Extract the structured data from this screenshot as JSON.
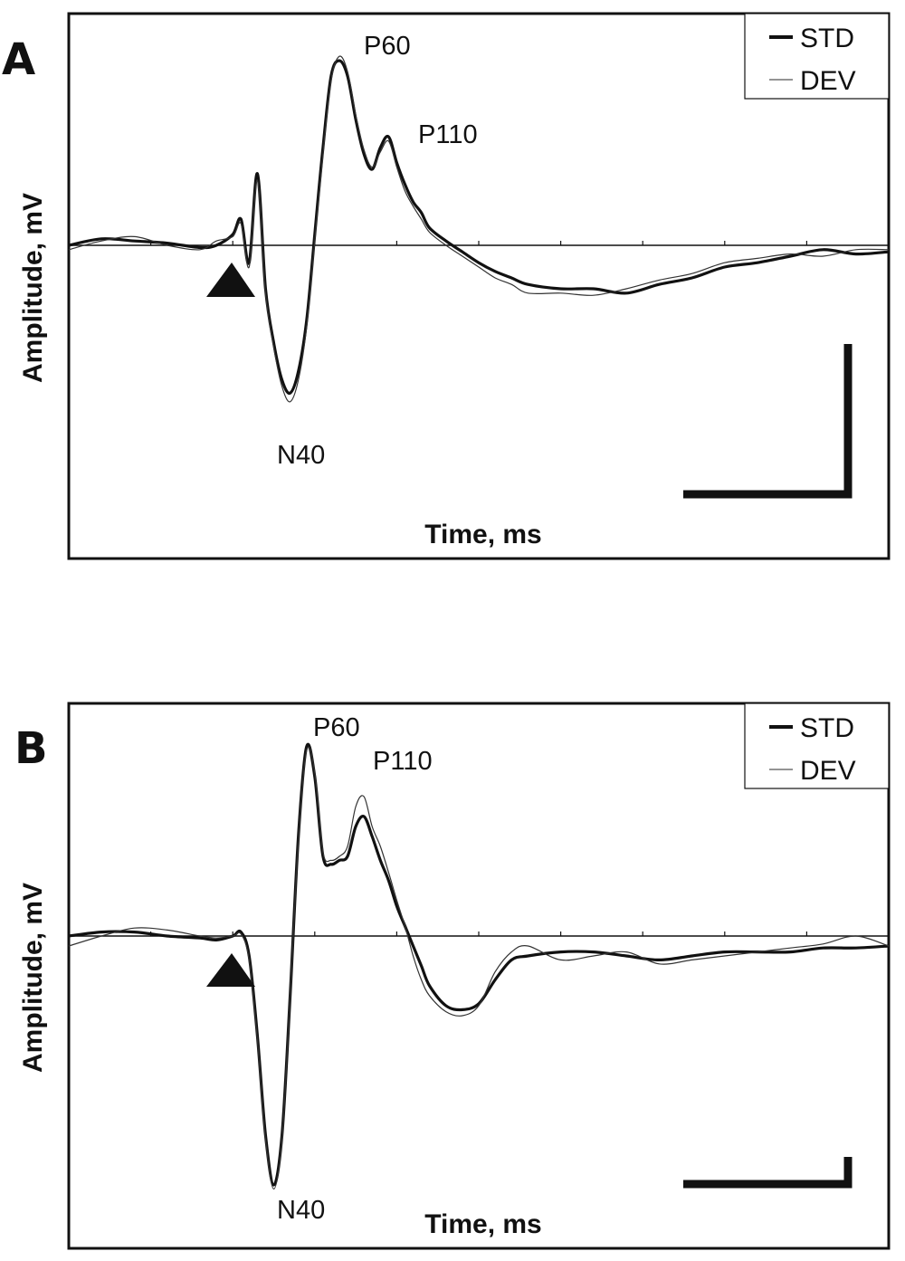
{
  "chart_data": [
    {
      "type": "line",
      "panel": "A",
      "xlabel": "Time, ms",
      "ylabel": "Amplitude, mV",
      "xlim": [
        -100,
        400
      ],
      "ylim": [
        -1.0,
        1.0
      ],
      "legend": {
        "placement": "top-right",
        "entries": [
          "STD",
          "DEV"
        ]
      },
      "stimulus_marker": {
        "x": -20
      },
      "annotations": [
        {
          "text": "P60",
          "x": 70,
          "y": 0.92
        },
        {
          "text": "P110",
          "x": 118,
          "y": 0.42
        },
        {
          "text": "N40",
          "x": 35,
          "y": -0.8
        }
      ],
      "series": [
        {
          "name": "STD",
          "x": [
            -100,
            -80,
            -60,
            -40,
            -20,
            -10,
            0,
            5,
            10,
            15,
            20,
            25,
            30,
            35,
            40,
            45,
            50,
            55,
            60,
            65,
            70,
            75,
            80,
            85,
            90,
            95,
            100,
            105,
            110,
            115,
            120,
            130,
            140,
            150,
            160,
            170,
            180,
            200,
            220,
            240,
            260,
            280,
            300,
            320,
            340,
            360,
            380,
            400
          ],
          "values": [
            0.0,
            0.03,
            0.02,
            0.01,
            -0.01,
            0.0,
            0.05,
            0.12,
            -0.08,
            0.33,
            -0.2,
            -0.45,
            -0.62,
            -0.68,
            -0.58,
            -0.35,
            0.05,
            0.45,
            0.78,
            0.85,
            0.78,
            0.58,
            0.42,
            0.35,
            0.45,
            0.5,
            0.38,
            0.28,
            0.2,
            0.15,
            0.08,
            0.02,
            -0.03,
            -0.08,
            -0.12,
            -0.15,
            -0.18,
            -0.2,
            -0.2,
            -0.22,
            -0.18,
            -0.15,
            -0.1,
            -0.08,
            -0.05,
            -0.02,
            -0.04,
            -0.03
          ]
        },
        {
          "name": "DEV",
          "x": [
            -100,
            -80,
            -60,
            -40,
            -20,
            -10,
            0,
            5,
            10,
            15,
            20,
            25,
            30,
            35,
            40,
            45,
            50,
            55,
            60,
            65,
            70,
            75,
            80,
            85,
            90,
            95,
            100,
            105,
            110,
            115,
            120,
            130,
            140,
            150,
            160,
            170,
            180,
            200,
            220,
            240,
            260,
            280,
            300,
            320,
            340,
            360,
            380,
            400
          ],
          "values": [
            -0.02,
            0.02,
            0.04,
            0.0,
            -0.02,
            0.02,
            0.04,
            0.1,
            -0.1,
            0.3,
            -0.22,
            -0.47,
            -0.65,
            -0.72,
            -0.62,
            -0.38,
            0.02,
            0.42,
            0.76,
            0.87,
            0.8,
            0.6,
            0.44,
            0.36,
            0.43,
            0.48,
            0.36,
            0.25,
            0.18,
            0.12,
            0.06,
            0.0,
            -0.05,
            -0.1,
            -0.15,
            -0.18,
            -0.22,
            -0.22,
            -0.23,
            -0.2,
            -0.16,
            -0.13,
            -0.08,
            -0.06,
            -0.04,
            -0.05,
            -0.02,
            -0.02
          ]
        }
      ]
    },
    {
      "type": "line",
      "panel": "B",
      "xlabel": "Time, ms",
      "ylabel": "Amplitude, mV",
      "xlim": [
        -100,
        400
      ],
      "ylim": [
        -1.0,
        1.0
      ],
      "legend": {
        "placement": "top-right",
        "entries": [
          "STD",
          "DEV"
        ]
      },
      "stimulus_marker": {
        "x": -20
      },
      "annotations": [
        {
          "text": "P60",
          "x": 62,
          "y": 0.82
        },
        {
          "text": "P110",
          "x": 98,
          "y": 0.55
        },
        {
          "text": "N40",
          "x": 35,
          "y": -0.9
        }
      ],
      "series": [
        {
          "name": "STD",
          "x": [
            -100,
            -80,
            -60,
            -40,
            -20,
            -10,
            0,
            5,
            10,
            15,
            20,
            25,
            30,
            35,
            40,
            45,
            50,
            55,
            60,
            65,
            70,
            75,
            80,
            85,
            90,
            95,
            100,
            105,
            110,
            115,
            120,
            130,
            140,
            150,
            160,
            170,
            180,
            200,
            220,
            240,
            260,
            280,
            300,
            320,
            340,
            360,
            380,
            400
          ],
          "values": [
            0.0,
            0.02,
            0.02,
            0.0,
            -0.01,
            -0.02,
            0.0,
            0.02,
            -0.1,
            -0.5,
            -1.0,
            -1.25,
            -1.0,
            -0.3,
            0.5,
            0.95,
            0.8,
            0.4,
            0.36,
            0.38,
            0.4,
            0.55,
            0.6,
            0.5,
            0.38,
            0.28,
            0.15,
            0.05,
            -0.05,
            -0.15,
            -0.25,
            -0.35,
            -0.37,
            -0.34,
            -0.22,
            -0.12,
            -0.1,
            -0.08,
            -0.08,
            -0.1,
            -0.12,
            -0.1,
            -0.08,
            -0.08,
            -0.08,
            -0.06,
            -0.06,
            -0.05
          ]
        },
        {
          "name": "DEV",
          "x": [
            -100,
            -80,
            -60,
            -40,
            -20,
            -10,
            0,
            5,
            10,
            15,
            20,
            25,
            30,
            35,
            40,
            45,
            50,
            55,
            60,
            65,
            70,
            75,
            80,
            85,
            90,
            95,
            100,
            105,
            110,
            115,
            120,
            130,
            140,
            150,
            160,
            170,
            180,
            200,
            220,
            240,
            260,
            280,
            300,
            320,
            340,
            360,
            380,
            400
          ],
          "values": [
            -0.05,
            0.0,
            0.04,
            0.03,
            0.0,
            -0.01,
            0.0,
            0.01,
            -0.12,
            -0.52,
            -1.02,
            -1.27,
            -1.02,
            -0.3,
            0.48,
            0.93,
            0.82,
            0.42,
            0.38,
            0.4,
            0.45,
            0.65,
            0.7,
            0.55,
            0.45,
            0.32,
            0.18,
            0.05,
            -0.1,
            -0.22,
            -0.3,
            -0.38,
            -0.4,
            -0.35,
            -0.18,
            -0.08,
            -0.05,
            -0.12,
            -0.1,
            -0.08,
            -0.14,
            -0.12,
            -0.1,
            -0.08,
            -0.06,
            -0.04,
            0.0,
            -0.05
          ]
        }
      ]
    }
  ]
}
